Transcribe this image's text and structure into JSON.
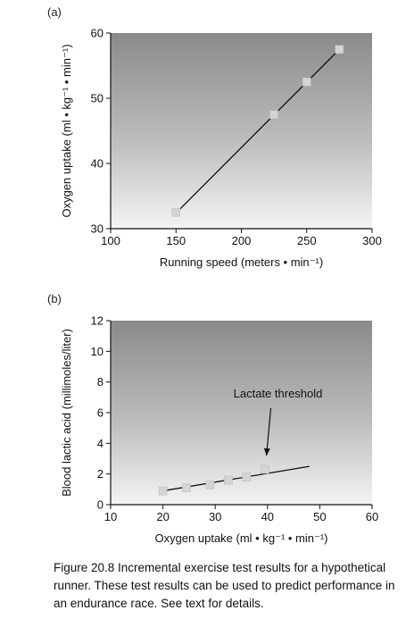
{
  "chart_data": [
    {
      "type": "scatter",
      "panel_label": "(a)",
      "xlabel": "Running speed (meters • min⁻¹)",
      "ylabel": "Oxygen uptake (ml • kg⁻¹ • min⁻¹)",
      "xlim": [
        100,
        300
      ],
      "ylim": [
        30,
        60
      ],
      "xticks": [
        100,
        150,
        200,
        250,
        300
      ],
      "yticks": [
        30,
        40,
        50,
        60
      ],
      "series": [
        {
          "x": [
            150,
            225,
            250,
            275
          ],
          "y": [
            32.5,
            47.5,
            52.5,
            57.5
          ]
        }
      ],
      "fit_line": {
        "x": [
          148,
          275
        ],
        "y": [
          32,
          57.5
        ]
      },
      "grid": false
    },
    {
      "type": "scatter",
      "panel_label": "(b)",
      "xlabel": "Oxygen uptake (ml • kg⁻¹ • min⁻¹)",
      "ylabel": "Blood lactic acid (millimoles/liter)",
      "xlim": [
        10,
        60
      ],
      "ylim": [
        0,
        12
      ],
      "xticks": [
        10,
        20,
        30,
        40,
        50,
        60
      ],
      "yticks": [
        0,
        2,
        4,
        6,
        8,
        10,
        12
      ],
      "series": [
        {
          "x": [
            20,
            24.5,
            29,
            32.5,
            36,
            39.5
          ],
          "y": [
            0.9,
            1.1,
            1.3,
            1.6,
            1.8,
            2.3
          ]
        }
      ],
      "fit_line": {
        "x": [
          20,
          48
        ],
        "y": [
          0.9,
          2.5
        ]
      },
      "annotation": {
        "text": "Lactate threshold",
        "x": 42,
        "y": 7.0,
        "arrow_to": [
          39.8,
          3.2
        ]
      },
      "grid": false
    }
  ],
  "caption": "Figure 20.8  Incremental exercise test results for a hypothetical runner. These test results can be used to predict performance in an endurance race. See text for details."
}
